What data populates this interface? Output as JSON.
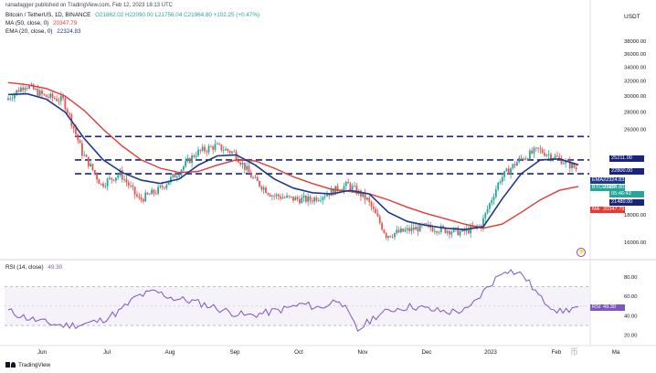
{
  "header": {
    "attribution": "ranadagger published on TradingView.com, Feb 12, 2023 18:13 UTC",
    "symbol_line": "Bitcoin / TetherUS, 1D, BINANCE",
    "ohlc": "O21862.02 H22090.00 L21756.04 C21964.80 +102.25 (+0.47%)",
    "ma_label": "MA (50, close, 0)",
    "ma_value": "20347.79",
    "ema_label": "EMA (20, close, 0)",
    "ema_value": "22324.83"
  },
  "colors": {
    "up": "#26a69a",
    "down": "#ef5350",
    "ema": "#1e3a8a",
    "ma": "#e53935",
    "rsi": "#7e57c2",
    "level": "#1a237e",
    "btc_tag": "#26a69a"
  },
  "price_axis": {
    "currency": "USDT",
    "ticks": [
      "38000.00",
      "36000.00",
      "34000.00",
      "32000.00",
      "30000.00",
      "28000.00",
      "26000.00",
      "18000.00",
      "16000.00"
    ]
  },
  "price_tags": [
    {
      "key": "",
      "label": "25211.00",
      "color": "#1a237e"
    },
    {
      "key": "",
      "label": "22800.00",
      "color": "#1a237e"
    },
    {
      "key": "EMA",
      "label": "22324.83",
      "color": "#1e3a8a"
    },
    {
      "key": "BTCUSDT",
      "label": "21964.80",
      "color": "#26a69a"
    },
    {
      "key": "",
      "label": "05:46:43",
      "color": "#26a69a"
    },
    {
      "key": "",
      "label": "21480.00",
      "color": "#1a237e"
    },
    {
      "key": "MA",
      "label": "20347.79",
      "color": "#e53935"
    }
  ],
  "rsi": {
    "label": "RSI (14, close)",
    "value": "49.30",
    "tag_key": "RSI",
    "ticks": [
      "80.00",
      "60.00",
      "40.00",
      "20.00"
    ]
  },
  "time_axis": [
    "Jun",
    "Jul",
    "Aug",
    "Sep",
    "Oct",
    "Nov",
    "Dec",
    "2023",
    "Feb",
    "Ma"
  ],
  "footer": {
    "brand": "TradingView"
  },
  "watermark": "币",
  "chart_data": {
    "type": "candlestick",
    "title": "Bitcoin / TetherUS, 1D, BINANCE",
    "x": [
      "Jun",
      "Jul",
      "Aug",
      "Sep",
      "Oct",
      "Nov",
      "Dec",
      "2023",
      "Feb"
    ],
    "price": [
      29500,
      31500,
      30000,
      29500,
      23500,
      20500,
      21500,
      19200,
      20000,
      21500,
      23500,
      24200,
      23500,
      21000,
      19600,
      19300,
      19200,
      19800,
      20500,
      19200,
      16500,
      16800,
      17100,
      16900,
      16700,
      17200,
      21000,
      22800,
      23800,
      23000,
      21964.8
    ],
    "ema20": [
      30200,
      30300,
      29600,
      28000,
      25000,
      22800,
      21600,
      20900,
      20600,
      21000,
      22300,
      23200,
      23300,
      22300,
      21000,
      20200,
      19800,
      19700,
      20000,
      19700,
      18200,
      17500,
      17200,
      17000,
      16900,
      17100,
      19300,
      21500,
      22800,
      22900,
      22324.83
    ],
    "ma50": [
      31800,
      31500,
      31000,
      30000,
      28200,
      26000,
      24200,
      22800,
      22000,
      21600,
      21700,
      22300,
      22800,
      22700,
      22000,
      21200,
      20600,
      20100,
      19900,
      19700,
      19200,
      18600,
      18100,
      17700,
      17300,
      17000,
      17300,
      18200,
      19200,
      20000,
      20347.79
    ],
    "horizontal_levels": [
      25211.0,
      22800.0,
      21480.0
    ],
    "ylim": [
      15000,
      40000
    ],
    "rsi_values": [
      45,
      38,
      33,
      30,
      31,
      35,
      44,
      60,
      65,
      58,
      55,
      50,
      44,
      40,
      43,
      47,
      52,
      48,
      58,
      25,
      40,
      47,
      50,
      46,
      44,
      46,
      68,
      88,
      82,
      57,
      44,
      49.3
    ],
    "rsi_ylim": [
      15,
      95
    ]
  }
}
